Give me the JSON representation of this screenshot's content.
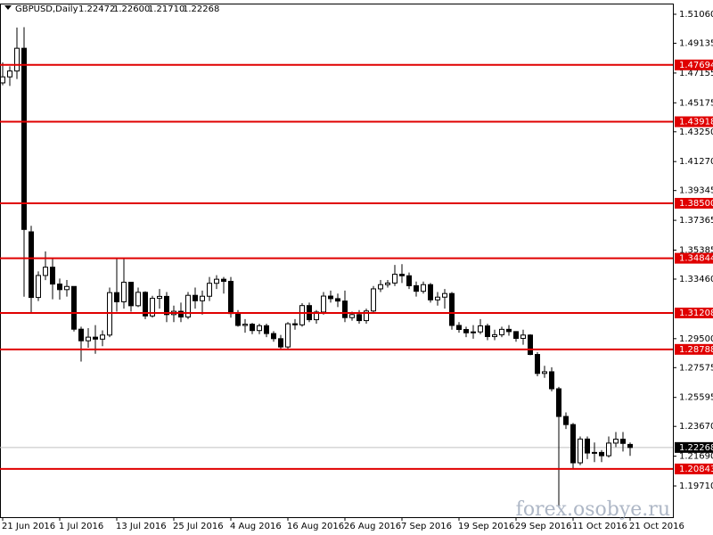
{
  "chart_data": {
    "type": "candlestick",
    "symbol": "GBPUSD,Daily",
    "header_ohlc": [
      "1.22472",
      "1.22600",
      "1.21710",
      "1.22268"
    ],
    "watermark": "forex.osobye.ru",
    "ylim": [
      1.17637,
      1.51712
    ],
    "yticks": [
      {
        "value": 1.5106,
        "label": "1.51060"
      },
      1.49135,
      1.47155,
      1.45175,
      {
        "value": 1.4325,
        "label": "1.43250"
      },
      {
        "value": 1.4127,
        "label": "1.41270"
      },
      1.39345,
      1.37365,
      1.35385,
      {
        "value": 1.3346,
        "label": "1.33460"
      },
      {
        "value": 1.295,
        "label": "1.29500"
      },
      1.27575,
      1.25595,
      {
        "value": 1.2367,
        "label": "1.23670"
      },
      {
        "value": 1.2169,
        "label": "1.21690"
      },
      {
        "value": 1.1971,
        "label": "1.19710"
      }
    ],
    "levels": [
      1.47694,
      1.43918,
      {
        "value": 1.385,
        "label": "1.38500"
      },
      1.34844,
      1.31208,
      1.28788,
      1.20843
    ],
    "level_color": "#e00000",
    "last_price": 1.22268,
    "up_color": "#ffffff",
    "down_color": "#000000",
    "categories": [
      "21 Jun 2016",
      null,
      null,
      null,
      null,
      null,
      null,
      null,
      "1 Jul 2016",
      null,
      null,
      null,
      null,
      null,
      null,
      null,
      "13 Jul 2016",
      null,
      null,
      null,
      null,
      null,
      null,
      null,
      "25 Jul 2016",
      null,
      null,
      null,
      null,
      null,
      null,
      null,
      "4 Aug 2016",
      null,
      null,
      null,
      null,
      null,
      null,
      null,
      "16 Aug 2016",
      null,
      null,
      null,
      null,
      null,
      null,
      null,
      "26 Aug 2016",
      null,
      null,
      null,
      null,
      null,
      null,
      null,
      "7 Sep 2016",
      null,
      null,
      null,
      null,
      null,
      null,
      null,
      "19 Sep 2016",
      null,
      null,
      null,
      null,
      null,
      null,
      null,
      "29 Sep 2016",
      null,
      null,
      null,
      null,
      null,
      null,
      null,
      "11 Oct 2016",
      null,
      null,
      null,
      null,
      null,
      null,
      null,
      "21 Oct 2016"
    ],
    "ohlc": [
      [
        1.465,
        1.4786,
        1.4634,
        1.469
      ],
      [
        1.469,
        1.476,
        1.463,
        1.4729
      ],
      [
        1.4729,
        1.5018,
        1.4676,
        1.488
      ],
      [
        1.488,
        1.502,
        1.3229,
        1.3676
      ],
      [
        1.366,
        1.37,
        1.3121,
        1.3224
      ],
      [
        1.3224,
        1.3397,
        1.32,
        1.337
      ],
      [
        1.337,
        1.353,
        1.3339,
        1.3425
      ],
      [
        1.3425,
        1.3487,
        1.3212,
        1.3313
      ],
      [
        1.3313,
        1.335,
        1.321,
        1.3276
      ],
      [
        1.3276,
        1.334,
        1.323,
        1.3297
      ],
      [
        1.3297,
        1.3297,
        1.2998,
        1.3013
      ],
      [
        1.3013,
        1.303,
        1.2798,
        1.2936
      ],
      [
        1.2936,
        1.302,
        1.289,
        1.296
      ],
      [
        1.296,
        1.304,
        1.285,
        1.2947
      ],
      [
        1.2947,
        1.3005,
        1.29,
        1.2974
      ],
      [
        1.2974,
        1.329,
        1.296,
        1.3256
      ],
      [
        1.3256,
        1.3481,
        1.313,
        1.3195
      ],
      [
        1.3195,
        1.3479,
        1.315,
        1.3325
      ],
      [
        1.3325,
        1.3325,
        1.313,
        1.3169
      ],
      [
        1.3169,
        1.329,
        1.316,
        1.3258
      ],
      [
        1.3258,
        1.3265,
        1.308,
        1.3101
      ],
      [
        1.3101,
        1.3235,
        1.309,
        1.3218
      ],
      [
        1.3218,
        1.328,
        1.315,
        1.3231
      ],
      [
        1.3231,
        1.326,
        1.306,
        1.311
      ],
      [
        1.311,
        1.317,
        1.306,
        1.3132
      ],
      [
        1.3132,
        1.319,
        1.306,
        1.3094
      ],
      [
        1.3094,
        1.326,
        1.308,
        1.3238
      ],
      [
        1.3238,
        1.329,
        1.315,
        1.3202
      ],
      [
        1.3202,
        1.327,
        1.311,
        1.3232
      ],
      [
        1.3232,
        1.336,
        1.32,
        1.3318
      ],
      [
        1.3318,
        1.3372,
        1.328,
        1.3345
      ],
      [
        1.3345,
        1.336,
        1.325,
        1.3331
      ],
      [
        1.3331,
        1.336,
        1.309,
        1.3117
      ],
      [
        1.3117,
        1.314,
        1.303,
        1.3038
      ],
      [
        1.3038,
        1.308,
        1.299,
        1.3046
      ],
      [
        1.3046,
        1.3055,
        1.298,
        1.3004
      ],
      [
        1.3004,
        1.305,
        1.298,
        1.3036
      ],
      [
        1.3036,
        1.305,
        1.296,
        1.2984
      ],
      [
        1.2984,
        1.3,
        1.293,
        1.295
      ],
      [
        1.295,
        1.2975,
        1.288,
        1.2895
      ],
      [
        1.2895,
        1.306,
        1.288,
        1.3049
      ],
      [
        1.3049,
        1.308,
        1.301,
        1.3042
      ],
      [
        1.3042,
        1.3186,
        1.303,
        1.317
      ],
      [
        1.317,
        1.319,
        1.306,
        1.3076
      ],
      [
        1.3076,
        1.314,
        1.305,
        1.3127
      ],
      [
        1.3127,
        1.326,
        1.311,
        1.3233
      ],
      [
        1.3233,
        1.327,
        1.319,
        1.3216
      ],
      [
        1.3216,
        1.325,
        1.316,
        1.32
      ],
      [
        1.32,
        1.327,
        1.306,
        1.309
      ],
      [
        1.309,
        1.313,
        1.307,
        1.311
      ],
      [
        1.311,
        1.314,
        1.305,
        1.307
      ],
      [
        1.307,
        1.315,
        1.305,
        1.3134
      ],
      [
        1.3134,
        1.33,
        1.312,
        1.3281
      ],
      [
        1.3281,
        1.334,
        1.326,
        1.3309
      ],
      [
        1.3309,
        1.334,
        1.329,
        1.332
      ],
      [
        1.332,
        1.344,
        1.33,
        1.3378
      ],
      [
        1.3378,
        1.3445,
        1.332,
        1.3368
      ],
      [
        1.3368,
        1.339,
        1.328,
        1.3302
      ],
      [
        1.3302,
        1.333,
        1.323,
        1.3265
      ],
      [
        1.3265,
        1.333,
        1.325,
        1.3309
      ],
      [
        1.3309,
        1.332,
        1.319,
        1.3208
      ],
      [
        1.3208,
        1.326,
        1.317,
        1.3226
      ],
      [
        1.3226,
        1.328,
        1.315,
        1.325
      ],
      [
        1.325,
        1.326,
        1.301,
        1.3038
      ],
      [
        1.3038,
        1.306,
        1.299,
        1.3011
      ],
      [
        1.3011,
        1.303,
        1.296,
        1.2989
      ],
      [
        1.2989,
        1.304,
        1.295,
        1.2995
      ],
      [
        1.2995,
        1.308,
        1.298,
        1.3035
      ],
      [
        1.3035,
        1.305,
        1.294,
        1.2964
      ],
      [
        1.2964,
        1.301,
        1.294,
        1.2976
      ],
      [
        1.2976,
        1.303,
        1.296,
        1.3012
      ],
      [
        1.3012,
        1.304,
        1.297,
        1.2997
      ],
      [
        1.2997,
        1.3,
        1.293,
        1.2952
      ],
      [
        1.2952,
        1.301,
        1.291,
        1.2974
      ],
      [
        1.2974,
        1.298,
        1.284,
        1.2845
      ],
      [
        1.2845,
        1.286,
        1.27,
        1.2719
      ],
      [
        1.2719,
        1.277,
        1.269,
        1.273
      ],
      [
        1.273,
        1.276,
        1.26,
        1.2617
      ],
      [
        1.2617,
        1.263,
        1.1841,
        1.2433
      ],
      [
        1.2433,
        1.246,
        1.235,
        1.2379
      ],
      [
        1.2379,
        1.239,
        1.2087,
        1.2125
      ],
      [
        1.2125,
        1.23,
        1.211,
        1.2283
      ],
      [
        1.2283,
        1.23,
        1.215,
        1.219
      ],
      [
        1.219,
        1.226,
        1.213,
        1.2194
      ],
      [
        1.2194,
        1.221,
        1.213,
        1.2172
      ],
      [
        1.2172,
        1.23,
        1.216,
        1.2256
      ],
      [
        1.2256,
        1.233,
        1.223,
        1.2282
      ],
      [
        1.2282,
        1.233,
        1.22,
        1.2254
      ],
      [
        1.22472,
        1.226,
        1.2171,
        1.22268
      ]
    ]
  }
}
